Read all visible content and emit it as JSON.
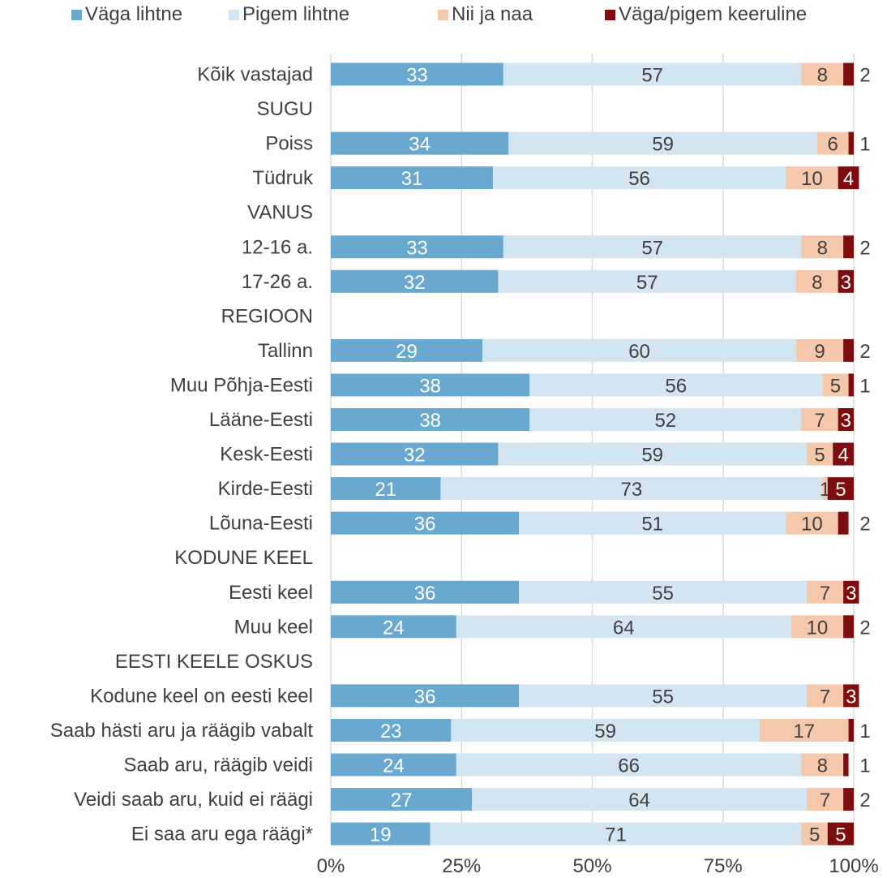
{
  "chart_data": {
    "type": "bar",
    "orientation": "horizontal",
    "stacked": true,
    "legend_position": "top",
    "grid": true,
    "xlim": [
      0,
      100
    ],
    "x_ticks": [
      "0%",
      "25%",
      "50%",
      "75%",
      "100%"
    ],
    "series": [
      {
        "name": "Väga lihtne",
        "color": "#6aa9cf"
      },
      {
        "name": "Pigem lihtne",
        "color": "#d2e5f0"
      },
      {
        "name": "Nii ja naa",
        "color": "#f6c8ab"
      },
      {
        "name": "Väga/pigem keeruline",
        "color": "#7e0d0f"
      }
    ],
    "rows": [
      {
        "label": "Kõik vastajad",
        "values": [
          33,
          57,
          8,
          2
        ]
      },
      {
        "label": "SUGU",
        "header": true
      },
      {
        "label": "Poiss",
        "values": [
          34,
          59,
          6,
          1
        ]
      },
      {
        "label": "Tüdruk",
        "values": [
          31,
          56,
          10,
          4
        ]
      },
      {
        "label": "VANUS",
        "header": true
      },
      {
        "label": "12-16 a.",
        "values": [
          33,
          57,
          8,
          2
        ]
      },
      {
        "label": "17-26 a.",
        "values": [
          32,
          57,
          8,
          3
        ]
      },
      {
        "label": "REGIOON",
        "header": true
      },
      {
        "label": "Tallinn",
        "values": [
          29,
          60,
          9,
          2
        ]
      },
      {
        "label": "Muu Põhja-Eesti",
        "values": [
          38,
          56,
          5,
          1
        ]
      },
      {
        "label": "Lääne-Eesti",
        "values": [
          38,
          52,
          7,
          3
        ]
      },
      {
        "label": "Kesk-Eesti",
        "values": [
          32,
          59,
          5,
          4
        ]
      },
      {
        "label": "Kirde-Eesti",
        "values": [
          21,
          73,
          1,
          5
        ]
      },
      {
        "label": "Lõuna-Eesti",
        "values": [
          36,
          51,
          10,
          2
        ]
      },
      {
        "label": "KODUNE KEEL",
        "header": true
      },
      {
        "label": "Eesti keel",
        "values": [
          36,
          55,
          7,
          3
        ]
      },
      {
        "label": "Muu keel",
        "values": [
          24,
          64,
          10,
          2
        ]
      },
      {
        "label": "EESTI KEELE OSKUS",
        "header": true
      },
      {
        "label": "Kodune keel on eesti keel",
        "values": [
          36,
          55,
          7,
          3
        ]
      },
      {
        "label": "Saab hästi aru ja räägib vabalt",
        "values": [
          23,
          59,
          17,
          1
        ]
      },
      {
        "label": "Saab aru, räägib veidi",
        "values": [
          24,
          66,
          8,
          1
        ]
      },
      {
        "label": "Veidi saab aru, kuid ei räägi",
        "values": [
          27,
          64,
          7,
          2
        ]
      },
      {
        "label": "Ei saa aru ega räägi*",
        "values": [
          19,
          71,
          5,
          5
        ]
      }
    ]
  }
}
